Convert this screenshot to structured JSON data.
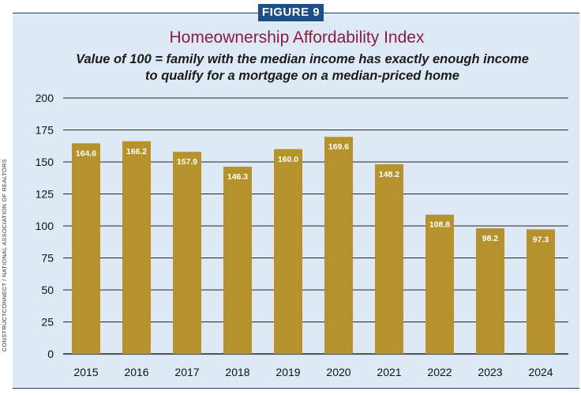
{
  "figure_label": "FIGURE 9",
  "source_credit": "CONSTRUCTCONNECT / NATIONAL ASSOCIATION OF REALTORS",
  "colors": {
    "bar": "#b5922c",
    "panel_bg": "#dde9f5",
    "badge_bg": "#1b4f8a",
    "title": "#8c1d40",
    "grid": "#222222"
  },
  "chart_data": {
    "type": "bar",
    "title": "Homeownership Affordability Index",
    "subtitle_lines": [
      "Value of 100 = family with the median income has exactly enough income",
      "to qualify for a mortgage on a median-priced home"
    ],
    "xlabel": "",
    "ylabel": "",
    "categories": [
      "2015",
      "2016",
      "2017",
      "2018",
      "2019",
      "2020",
      "2021",
      "2022",
      "2023",
      "2024"
    ],
    "values": [
      164.6,
      166.2,
      157.9,
      146.3,
      160.0,
      169.6,
      148.2,
      108.8,
      98.2,
      97.3
    ],
    "value_labels": [
      "164.6",
      "166.2",
      "157.9",
      "146.3",
      "160.0",
      "169.6",
      "148.2",
      "108.8",
      "98.2",
      "97.3"
    ],
    "ylim": [
      0,
      200
    ],
    "yticks": [
      0,
      25,
      50,
      75,
      100,
      125,
      150,
      175,
      200
    ],
    "grid": true,
    "legend": "none"
  }
}
